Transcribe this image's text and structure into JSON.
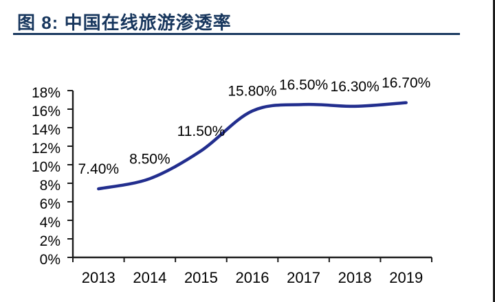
{
  "page": {
    "title": "图 8: 中国在线旅游渗透率",
    "accent_color": "#17365d",
    "border_color": "#1a1a1a",
    "background_color": "#ffffff"
  },
  "chart_data": {
    "type": "line",
    "title": "中国在线旅游渗透率",
    "categories": [
      "2013",
      "2014",
      "2015",
      "2016",
      "2017",
      "2018",
      "2019"
    ],
    "values": [
      7.4,
      8.5,
      11.5,
      15.8,
      16.5,
      16.3,
      16.7
    ],
    "data_labels": [
      "7.40%",
      "8.50%",
      "11.50%",
      "15.80%",
      "16.50%",
      "16.30%",
      "16.70%"
    ],
    "y_tick_labels": [
      "0%",
      "2%",
      "4%",
      "6%",
      "8%",
      "10%",
      "12%",
      "14%",
      "16%",
      "18%"
    ],
    "ylim": [
      0,
      18
    ],
    "y_tick_step": 2,
    "xlabel": "",
    "ylabel": "",
    "grid": false,
    "legend": "none",
    "smooth": true,
    "line_color": "#222e8e",
    "axis_color": "#1a1a1a",
    "text_color": "#000000"
  }
}
